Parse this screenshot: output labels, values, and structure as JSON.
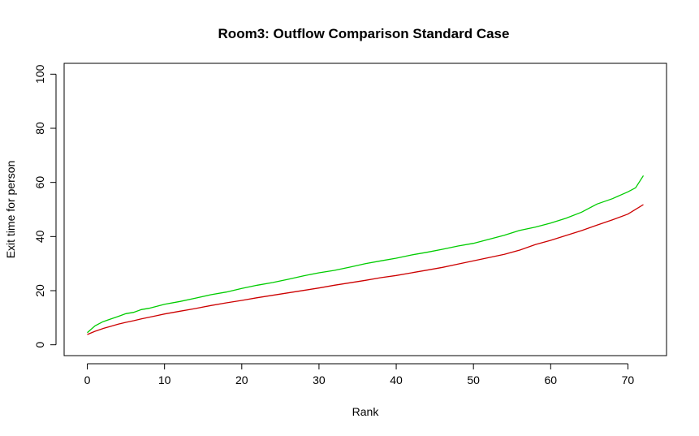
{
  "chart_data": {
    "type": "line",
    "title": "Room3: Outflow Comparison Standard Case",
    "xlabel": "Rank",
    "ylabel": "Exit time for person",
    "xlim": [
      -3,
      75
    ],
    "ylim": [
      -4,
      104
    ],
    "x_ticks": [
      "0",
      "10",
      "20",
      "30",
      "40",
      "50",
      "60",
      "70"
    ],
    "y_ticks": [
      "0",
      "20",
      "40",
      "60",
      "80",
      "100"
    ],
    "grid": false,
    "legend": "none",
    "series": [
      {
        "color": "#00cc00",
        "points": [
          [
            0,
            4.5
          ],
          [
            1,
            7
          ],
          [
            2,
            8.5
          ],
          [
            3,
            9.5
          ],
          [
            4,
            10.5
          ],
          [
            5,
            11.5
          ],
          [
            6,
            12
          ],
          [
            7,
            13
          ],
          [
            8,
            13.5
          ],
          [
            9,
            14.2
          ],
          [
            10,
            15
          ],
          [
            12,
            16
          ],
          [
            14,
            17.2
          ],
          [
            16,
            18.5
          ],
          [
            18,
            19.5
          ],
          [
            20,
            20.8
          ],
          [
            22,
            22
          ],
          [
            24,
            23
          ],
          [
            26,
            24.2
          ],
          [
            28,
            25.5
          ],
          [
            30,
            26.6
          ],
          [
            32,
            27.5
          ],
          [
            34,
            28.7
          ],
          [
            36,
            30
          ],
          [
            38,
            31
          ],
          [
            40,
            32
          ],
          [
            42,
            33.2
          ],
          [
            44,
            34.2
          ],
          [
            46,
            35.3
          ],
          [
            48,
            36.5
          ],
          [
            50,
            37.5
          ],
          [
            52,
            39
          ],
          [
            54,
            40.5
          ],
          [
            56,
            42.3
          ],
          [
            58,
            43.5
          ],
          [
            60,
            45
          ],
          [
            62,
            46.8
          ],
          [
            64,
            49
          ],
          [
            66,
            52
          ],
          [
            68,
            54
          ],
          [
            70,
            56.5
          ],
          [
            71,
            58
          ],
          [
            72,
            62.5
          ]
        ]
      },
      {
        "color": "#cc0000",
        "points": [
          [
            0,
            3.8
          ],
          [
            1,
            5
          ],
          [
            2,
            6
          ],
          [
            3,
            6.8
          ],
          [
            4,
            7.6
          ],
          [
            5,
            8.3
          ],
          [
            6,
            8.9
          ],
          [
            7,
            9.6
          ],
          [
            8,
            10.2
          ],
          [
            9,
            10.8
          ],
          [
            10,
            11.4
          ],
          [
            12,
            12.4
          ],
          [
            14,
            13.4
          ],
          [
            16,
            14.5
          ],
          [
            18,
            15.5
          ],
          [
            20,
            16.4
          ],
          [
            22,
            17.4
          ],
          [
            24,
            18.3
          ],
          [
            26,
            19.2
          ],
          [
            28,
            20.1
          ],
          [
            30,
            21
          ],
          [
            32,
            22
          ],
          [
            34,
            22.9
          ],
          [
            36,
            23.8
          ],
          [
            38,
            24.8
          ],
          [
            40,
            25.6
          ],
          [
            42,
            26.6
          ],
          [
            44,
            27.6
          ],
          [
            46,
            28.6
          ],
          [
            48,
            29.8
          ],
          [
            50,
            31
          ],
          [
            52,
            32.2
          ],
          [
            54,
            33.4
          ],
          [
            56,
            35
          ],
          [
            58,
            37
          ],
          [
            60,
            38.6
          ],
          [
            62,
            40.4
          ],
          [
            64,
            42.2
          ],
          [
            66,
            44.2
          ],
          [
            68,
            46.2
          ],
          [
            70,
            48.3
          ],
          [
            72,
            51.8
          ]
        ]
      }
    ]
  }
}
